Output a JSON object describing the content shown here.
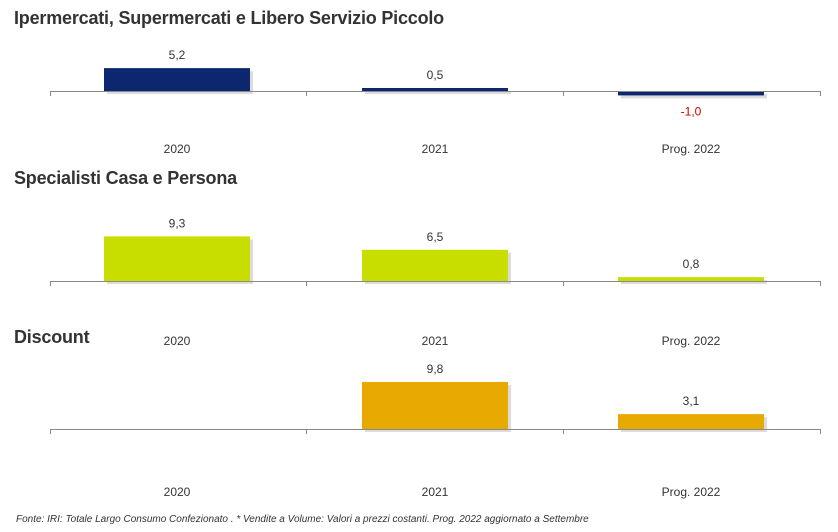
{
  "footnote": "Fonte: IRI: Totale Largo Consumo Confezionato . * Vendite a Volume: Valori a prezzi costanti.  Prog. 2022 aggiornato a Settembre",
  "chart_data": [
    {
      "type": "bar",
      "title": "Ipermercati, Supermercati e Libero Servizio Piccolo",
      "categories": [
        "2020",
        "2021",
        "Prog. 2022"
      ],
      "series": [
        {
          "values": [
            5.2,
            0.5,
            -1.0
          ]
        }
      ],
      "value_labels": [
        "5,2",
        "0,5",
        "-1,0"
      ],
      "color": "#0d2670",
      "negative_label_color": "#cc0000",
      "grid": false
    },
    {
      "type": "bar",
      "title": "Specialisti Casa e Persona",
      "categories": [
        "2020",
        "2021",
        "Prog. 2022"
      ],
      "series": [
        {
          "values": [
            9.3,
            6.5,
            0.8
          ]
        }
      ],
      "value_labels": [
        "9,3",
        "6,5",
        "0,8"
      ],
      "color": "#c8dd00",
      "grid": false
    },
    {
      "type": "bar",
      "title": "Discount",
      "categories": [
        "2020",
        "2021",
        "Prog. 2022"
      ],
      "series": [
        {
          "values": [
            null,
            9.8,
            3.1
          ]
        }
      ],
      "value_labels": [
        "",
        "9,8",
        "3,1"
      ],
      "color": "#e8a900",
      "grid": false
    }
  ]
}
